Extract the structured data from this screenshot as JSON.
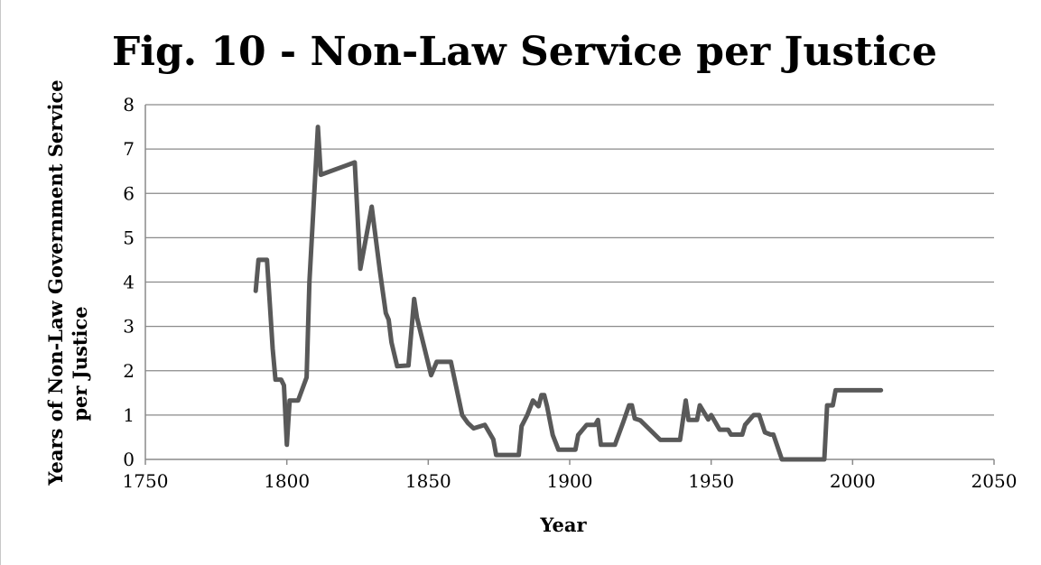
{
  "chart_data": {
    "type": "line",
    "title": "Fig. 10 - Non-Law Service per Justice",
    "xlabel": "Year",
    "ylabel_line1": "Years of Non-Law Government Service",
    "ylabel_line2": "per Justice",
    "xlim": [
      1750,
      2050
    ],
    "ylim": [
      0,
      8
    ],
    "xticks": [
      1750,
      1800,
      1850,
      1900,
      1950,
      2000,
      2050
    ],
    "yticks": [
      0,
      1,
      2,
      3,
      4,
      5,
      6,
      7,
      8
    ],
    "grid": true,
    "legend": "none",
    "series": [
      {
        "color": "#595959",
        "x": [
          1789,
          1790,
          1793,
          1794,
          1795,
          1796,
          1798,
          1799,
          1800,
          1801,
          1804,
          1807,
          1808,
          1811,
          1812,
          1824,
          1826,
          1828,
          1830,
          1833,
          1835,
          1836,
          1837,
          1839,
          1843,
          1845,
          1846,
          1851,
          1853,
          1858,
          1862,
          1864,
          1866,
          1870,
          1873,
          1874,
          1882,
          1883,
          1885,
          1887,
          1889,
          1890,
          1891,
          1892,
          1894,
          1896,
          1902,
          1903,
          1906,
          1909,
          1910,
          1911,
          1916,
          1919,
          1921,
          1922,
          1923,
          1925,
          1932,
          1939,
          1941,
          1942,
          1945,
          1946,
          1949,
          1950,
          1953,
          1956,
          1957,
          1961,
          1962,
          1965,
          1967,
          1969,
          1971,
          1972,
          1975,
          1981,
          1990,
          1991,
          1993,
          1994,
          2010
        ],
        "y": [
          3.8,
          4.5,
          4.5,
          3.5,
          2.5,
          1.8,
          1.8,
          1.67,
          0.33,
          1.33,
          1.33,
          1.85,
          4.0,
          7.5,
          6.42,
          6.7,
          4.3,
          5.0,
          5.7,
          4.2,
          3.3,
          3.15,
          2.64,
          2.1,
          2.12,
          3.62,
          3.2,
          1.9,
          2.2,
          2.2,
          1.0,
          0.82,
          0.7,
          0.78,
          0.45,
          0.1,
          0.1,
          0.75,
          1.0,
          1.33,
          1.2,
          1.45,
          1.45,
          1.2,
          0.55,
          0.22,
          0.22,
          0.55,
          0.78,
          0.78,
          0.89,
          0.33,
          0.33,
          0.85,
          1.22,
          1.22,
          0.92,
          0.88,
          0.44,
          0.44,
          1.33,
          0.89,
          0.89,
          1.22,
          0.9,
          1.0,
          0.67,
          0.67,
          0.56,
          0.56,
          0.78,
          1.0,
          1.0,
          0.61,
          0.56,
          0.56,
          0.0,
          0.0,
          0.0,
          1.22,
          1.22,
          1.56,
          1.56
        ]
      }
    ]
  }
}
